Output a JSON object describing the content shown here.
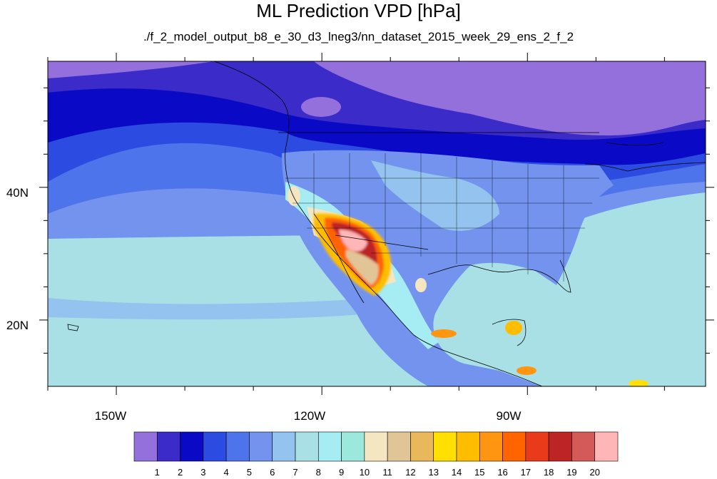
{
  "title": "ML Prediction VPD [hPa]",
  "subtitle": "./f_2_model_output_b8_e_30_d3_lneg3/nn_dataset_2015_week_29_ens_2_f_2",
  "map": {
    "lon_labels": [
      "150W",
      "120W",
      "90W"
    ],
    "lat_labels": [
      "40N",
      "20N"
    ],
    "lon_range": [
      -160,
      -64
    ],
    "lat_range": [
      10,
      59
    ]
  },
  "colorbar": {
    "labels": [
      "1",
      "2",
      "3",
      "4",
      "5",
      "6",
      "7",
      "8",
      "9",
      "10",
      "11",
      "12",
      "13",
      "14",
      "15",
      "16",
      "17",
      "18",
      "19",
      "20"
    ],
    "colors": [
      "#9370db",
      "#3b2bc8",
      "#0a0ac6",
      "#2c4be0",
      "#4e74ec",
      "#7393ee",
      "#93c3ee",
      "#a9e0e6",
      "#a5ecf3",
      "#9ce8dc",
      "#f3e6c0",
      "#e2c596",
      "#e8b85a",
      "#ffe000",
      "#ffbd00",
      "#ff9510",
      "#ff6400",
      "#ea3a1c",
      "#bc2426",
      "#d45a5a",
      "#ffb6b6"
    ]
  }
}
